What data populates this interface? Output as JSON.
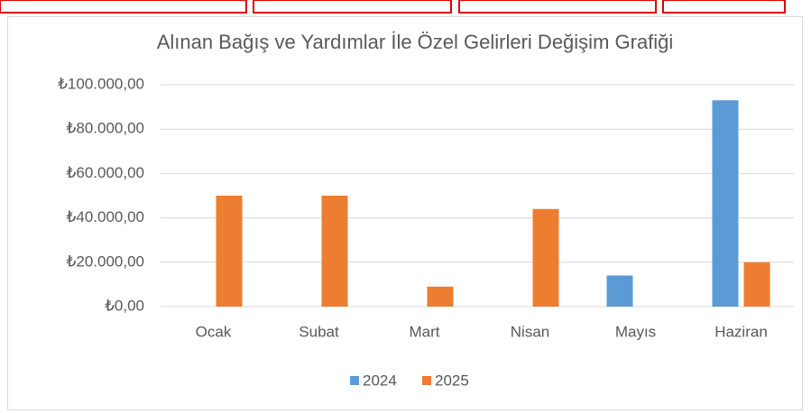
{
  "chart_data": {
    "type": "bar",
    "title": "Alınan Bağış ve Yardımlar İle Özel Gelirleri Değişim Grafiği",
    "categories": [
      "Ocak",
      "Subat",
      "Mart",
      "Nisan",
      "Mayıs",
      "Haziran"
    ],
    "series": [
      {
        "name": "2024",
        "color": "#5b9bd5",
        "values": [
          0,
          0,
          0,
          0,
          14000,
          93000
        ]
      },
      {
        "name": "2025",
        "color": "#ed7d31",
        "values": [
          50000,
          50000,
          9000,
          44000,
          0,
          20000
        ]
      }
    ],
    "ylim": [
      0,
      100000
    ],
    "yticks": [
      {
        "value": 0,
        "label": "₺0,00"
      },
      {
        "value": 20000,
        "label": "₺20.000,00"
      },
      {
        "value": 40000,
        "label": "₺40.000,00"
      },
      {
        "value": 60000,
        "label": "₺60.000,00"
      },
      {
        "value": 80000,
        "label": "₺80.000,00"
      },
      {
        "value": 100000,
        "label": "₺100.000,00"
      }
    ],
    "grid": true,
    "legend": "bottom"
  }
}
